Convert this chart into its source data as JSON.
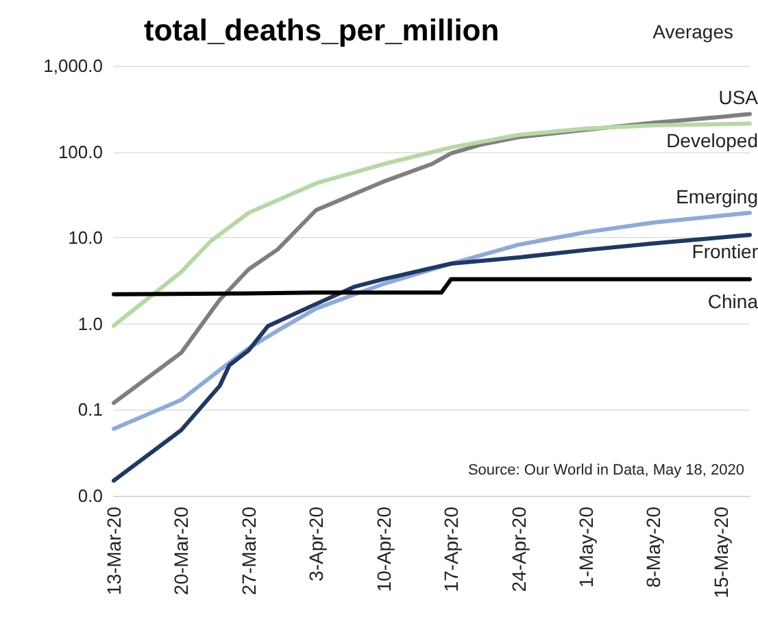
{
  "chart_data": {
    "type": "line",
    "title": "total_deaths_per_million",
    "legend_title": "Averages",
    "annotations": [
      "Source: Our World in Data, May 18, 2020"
    ],
    "log": "y",
    "grid": "y",
    "legend": false,
    "marker": "none",
    "line_style": "solid",
    "xlim": [
      "2020-03-13",
      "2020-05-18"
    ],
    "xticks": [
      {
        "value": "2020-03-13",
        "label": "13-Mar-20"
      },
      {
        "value": "2020-03-20",
        "label": "20-Mar-20"
      },
      {
        "value": "2020-03-27",
        "label": "27-Mar-20"
      },
      {
        "value": "2020-04-03",
        "label": "3-Apr-20"
      },
      {
        "value": "2020-04-10",
        "label": "10-Apr-20"
      },
      {
        "value": "2020-04-17",
        "label": "17-Apr-20"
      },
      {
        "value": "2020-04-24",
        "label": "24-Apr-20"
      },
      {
        "value": "2020-05-01",
        "label": "1-May-20"
      },
      {
        "value": "2020-05-08",
        "label": "8-May-20"
      },
      {
        "value": "2020-05-15",
        "label": "15-May-20"
      }
    ],
    "ylim": [
      0.01,
      1000
    ],
    "yticks": [
      {
        "value": 0.01,
        "label": "0.0"
      },
      {
        "value": 0.1,
        "label": "0.1"
      },
      {
        "value": 1,
        "label": "1.0"
      },
      {
        "value": 10,
        "label": "10.0"
      },
      {
        "value": 100,
        "label": "100.0"
      },
      {
        "value": 1000,
        "label": "1,000.0"
      }
    ],
    "series": [
      {
        "name": "USA",
        "color": "#7f7f7f",
        "x": [
          "2020-03-13",
          "2020-03-20",
          "2020-03-24",
          "2020-03-27",
          "2020-03-30",
          "2020-04-03",
          "2020-04-10",
          "2020-04-15",
          "2020-04-17",
          "2020-04-20",
          "2020-04-24",
          "2020-05-01",
          "2020-05-08",
          "2020-05-15",
          "2020-05-18"
        ],
        "values": [
          0.12,
          0.46,
          1.9,
          4.3,
          7.3,
          21,
          45,
          72,
          96,
          120,
          148,
          180,
          217,
          254,
          275
        ]
      },
      {
        "name": "Developed",
        "color": "#b5d9a3",
        "x": [
          "2020-03-13",
          "2020-03-20",
          "2020-03-23",
          "2020-03-27",
          "2020-04-03",
          "2020-04-10",
          "2020-04-17",
          "2020-04-24",
          "2020-05-01",
          "2020-05-08",
          "2020-05-18"
        ],
        "values": [
          0.95,
          4.0,
          9,
          19.5,
          43,
          72,
          112,
          157,
          186,
          203,
          212
        ]
      },
      {
        "name": "Emerging",
        "color": "#8eaadb",
        "x": [
          "2020-03-13",
          "2020-03-20",
          "2020-03-24",
          "2020-03-27",
          "2020-03-30",
          "2020-04-03",
          "2020-04-07",
          "2020-04-10",
          "2020-04-17",
          "2020-04-24",
          "2020-05-01",
          "2020-05-08",
          "2020-05-18"
        ],
        "values": [
          0.06,
          0.13,
          0.29,
          0.52,
          0.83,
          1.5,
          2.2,
          2.9,
          5,
          8.3,
          11.6,
          15,
          19.5
        ]
      },
      {
        "name": "Frontier",
        "color": "#1f3864",
        "x": [
          "2020-03-13",
          "2020-03-20",
          "2020-03-24",
          "2020-03-25",
          "2020-03-27",
          "2020-03-29",
          "2020-04-03",
          "2020-04-07",
          "2020-04-10",
          "2020-04-17",
          "2020-04-24",
          "2020-05-01",
          "2020-05-08",
          "2020-05-18"
        ],
        "values": [
          0.015,
          0.058,
          0.19,
          0.33,
          0.49,
          0.94,
          1.7,
          2.7,
          3.3,
          5,
          5.9,
          7.2,
          8.6,
          10.8
        ]
      },
      {
        "name": "China",
        "color": "#000000",
        "x": [
          "2020-03-13",
          "2020-03-27",
          "2020-04-03",
          "2020-04-16",
          "2020-04-17",
          "2020-05-18"
        ],
        "values": [
          2.2,
          2.25,
          2.3,
          2.3,
          3.3,
          3.3
        ]
      }
    ]
  }
}
